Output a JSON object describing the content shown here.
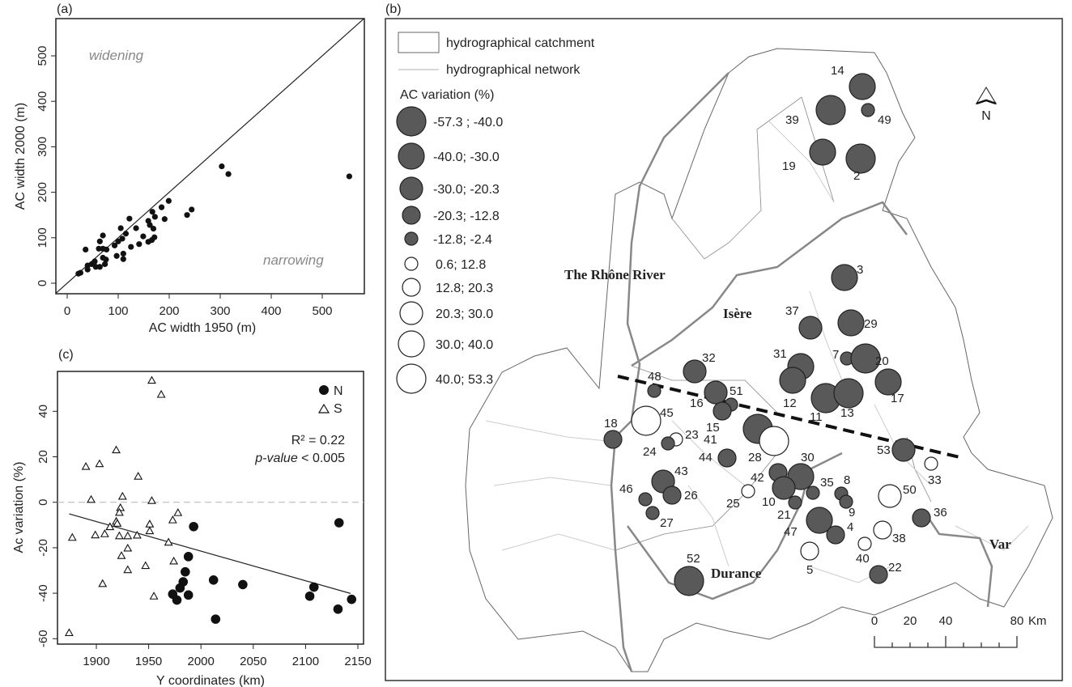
{
  "panels": {
    "a": "(a)",
    "b": "(b)",
    "c": "(c)"
  },
  "chart_data": [
    {
      "panel": "a",
      "type": "scatter",
      "xlabel": "AC width 1950 (m)",
      "ylabel": "AC width 2000 (m)",
      "xlim": [
        -22,
        582
      ],
      "ylim": [
        -23,
        582
      ],
      "xticks": [
        0,
        100,
        200,
        300,
        400,
        500
      ],
      "yticks": [
        0,
        100,
        200,
        300,
        400,
        500
      ],
      "reference_line": "1:1",
      "annotations": [
        "widening",
        "narrowing"
      ],
      "points": [
        [
          553,
          235
        ],
        [
          303,
          257
        ],
        [
          316,
          240
        ],
        [
          244,
          162
        ],
        [
          235,
          150
        ],
        [
          199,
          181
        ],
        [
          185,
          167
        ],
        [
          191,
          141
        ],
        [
          167,
          157
        ],
        [
          172,
          146
        ],
        [
          159,
          137
        ],
        [
          162,
          128
        ],
        [
          169,
          120
        ],
        [
          171,
          101
        ],
        [
          166,
          95
        ],
        [
          159,
          91
        ],
        [
          149,
          103
        ],
        [
          135,
          121
        ],
        [
          122,
          142
        ],
        [
          141,
          86
        ],
        [
          125,
          80
        ],
        [
          105,
          121
        ],
        [
          115,
          109
        ],
        [
          108,
          98
        ],
        [
          100,
          92
        ],
        [
          93,
          83
        ],
        [
          110,
          65
        ],
        [
          110,
          53
        ],
        [
          97,
          60
        ],
        [
          70,
          105
        ],
        [
          64,
          92
        ],
        [
          62,
          76
        ],
        [
          70,
          76
        ],
        [
          77,
          74
        ],
        [
          36,
          74
        ],
        [
          70,
          56
        ],
        [
          76,
          52
        ],
        [
          74,
          42
        ],
        [
          54,
          48
        ],
        [
          48,
          42
        ],
        [
          40,
          39
        ],
        [
          40,
          30
        ],
        [
          56,
          36
        ],
        [
          64,
          36
        ],
        [
          26,
          23
        ],
        [
          22,
          21
        ]
      ]
    },
    {
      "panel": "c",
      "type": "scatter",
      "xlabel": "Y coordinates (km)",
      "ylabel": "Ac variation (%)",
      "xlim": [
        1863,
        2156
      ],
      "ylim": [
        -62,
        57
      ],
      "xticks": [
        1900,
        1950,
        2000,
        2050,
        2100,
        2150
      ],
      "yticks": [
        -60,
        -40,
        -20,
        0,
        20,
        40
      ],
      "legend": {
        "position": "top-right",
        "entries": [
          "N",
          "S"
        ]
      },
      "stats": {
        "r2": "R² = 0.22",
        "p_label": "p-value",
        "p_rest": " < 0.005"
      },
      "regression": {
        "x": [
          1874,
          2143
        ],
        "y": [
          -5.1,
          -40.1
        ]
      },
      "series": [
        {
          "name": "N",
          "marker": "filled-circle",
          "points": [
            [
              2132,
              -9
            ],
            [
              1993,
              -10.7
            ],
            [
              1988,
              -23.9
            ],
            [
              1985,
              -30.6
            ],
            [
              1983,
              -35
            ],
            [
              1980,
              -37.7
            ],
            [
              1973,
              -40.4
            ],
            [
              1977,
              -43
            ],
            [
              1988,
              -40.8
            ],
            [
              2012,
              -34.2
            ],
            [
              2014,
              -51.4
            ],
            [
              2040,
              -36.2
            ],
            [
              2108,
              -37.3
            ],
            [
              2104,
              -41.3
            ],
            [
              2131,
              -47
            ],
            [
              2144,
              -42.7
            ]
          ]
        },
        {
          "name": "S",
          "marker": "open-triangle",
          "points": [
            [
              1953,
              53.6
            ],
            [
              1962,
              47.4
            ],
            [
              1919,
              23
            ],
            [
              1890,
              15.7
            ],
            [
              1903,
              16.9
            ],
            [
              1940,
              11.4
            ],
            [
              1895,
              1.2
            ],
            [
              1925,
              2.6
            ],
            [
              1953,
              0.7
            ],
            [
              1923,
              -2.4
            ],
            [
              1922,
              -4.5
            ],
            [
              1919,
              -8.4
            ],
            [
              1920,
              -9.3
            ],
            [
              1913,
              -10.8
            ],
            [
              1908,
              -13.9
            ],
            [
              1899,
              -14.4
            ],
            [
              1877,
              -15.5
            ],
            [
              1922,
              -14.8
            ],
            [
              1930,
              -14.8
            ],
            [
              1939,
              -14.5
            ],
            [
              1951,
              -9.6
            ],
            [
              1951,
              -12.6
            ],
            [
              1973,
              -7.8
            ],
            [
              1978,
              -4.6
            ],
            [
              1969,
              -17.6
            ],
            [
              1930,
              -20.2
            ],
            [
              1924,
              -23.5
            ],
            [
              1974,
              -25.9
            ],
            [
              1930,
              -29.7
            ],
            [
              1947,
              -27.9
            ],
            [
              1906,
              -35.8
            ],
            [
              1955,
              -41.3
            ],
            [
              1874,
              -57.4
            ]
          ]
        }
      ]
    }
  ],
  "map": {
    "legend": {
      "catchment": "hydrographical catchment",
      "network": "hydrographical network",
      "title": "AC variation (%)",
      "classes": [
        {
          "label": "-57.3 ; -40.0",
          "fill": "#595959"
        },
        {
          "label": "-40.0; -30.0",
          "fill": "#595959"
        },
        {
          "label": "-30.0; -20.3",
          "fill": "#595959"
        },
        {
          "label": "-20.3; -12.8",
          "fill": "#595959"
        },
        {
          "label": "-12.8; -2.4",
          "fill": "#595959"
        },
        {
          "label": "0.6; 12.8",
          "fill": "#ffffff"
        },
        {
          "label": "12.8; 20.3",
          "fill": "#ffffff"
        },
        {
          "label": "20.3; 30.0",
          "fill": "#ffffff"
        },
        {
          "label": "30.0; 40.0",
          "fill": "#ffffff"
        },
        {
          "label": "40.0; 53.3",
          "fill": "#ffffff"
        }
      ]
    },
    "rivers": {
      "rhone": "The Rhône River",
      "isere": "Isère",
      "durance": "Durance",
      "var": "Var"
    },
    "north": "N",
    "scale": {
      "ticks": [
        "0",
        "20",
        "40",
        "80"
      ],
      "unit": "Km"
    },
    "sites": [
      {
        "id": "14",
        "cls": 1
      },
      {
        "id": "39",
        "cls": 0
      },
      {
        "id": "49",
        "cls": 4
      },
      {
        "id": "19",
        "cls": 1
      },
      {
        "id": "2",
        "cls": 0
      },
      {
        "id": "3",
        "cls": 1
      },
      {
        "id": "37",
        "cls": 2
      },
      {
        "id": "29",
        "cls": 1
      },
      {
        "id": "31",
        "cls": 1
      },
      {
        "id": "7",
        "cls": 4
      },
      {
        "id": "20",
        "cls": 0
      },
      {
        "id": "12",
        "cls": 1
      },
      {
        "id": "17",
        "cls": 1
      },
      {
        "id": "11",
        "cls": 0
      },
      {
        "id": "13",
        "cls": 0
      },
      {
        "id": "32",
        "cls": 2
      },
      {
        "id": "48",
        "cls": 4
      },
      {
        "id": "16",
        "cls": 2
      },
      {
        "id": "51",
        "cls": 4
      },
      {
        "id": "15",
        "cls": 3
      },
      {
        "id": "45",
        "cls": 9
      },
      {
        "id": "18",
        "cls": 3
      },
      {
        "id": "23",
        "cls": 5
      },
      {
        "id": "24",
        "cls": 4
      },
      {
        "id": "41",
        "cls": 0
      },
      {
        "id": "28",
        "cls": 9
      },
      {
        "id": "44",
        "cls": 3
      },
      {
        "id": "43",
        "cls": 2
      },
      {
        "id": "26",
        "cls": 3
      },
      {
        "id": "46",
        "cls": 4
      },
      {
        "id": "27",
        "cls": 4
      },
      {
        "id": "25",
        "cls": 5
      },
      {
        "id": "42",
        "cls": 3
      },
      {
        "id": "30",
        "cls": 1
      },
      {
        "id": "10",
        "cls": 2
      },
      {
        "id": "35",
        "cls": 4
      },
      {
        "id": "21",
        "cls": 4
      },
      {
        "id": "8",
        "cls": 4
      },
      {
        "id": "9",
        "cls": 4
      },
      {
        "id": "47",
        "cls": 1
      },
      {
        "id": "4",
        "cls": 3
      },
      {
        "id": "5",
        "cls": 6
      },
      {
        "id": "40",
        "cls": 5
      },
      {
        "id": "38",
        "cls": 6
      },
      {
        "id": "50",
        "cls": 7
      },
      {
        "id": "33",
        "cls": 5
      },
      {
        "id": "36",
        "cls": 3
      },
      {
        "id": "22",
        "cls": 3
      },
      {
        "id": "53",
        "cls": 2
      },
      {
        "id": "52",
        "cls": 0
      }
    ]
  }
}
